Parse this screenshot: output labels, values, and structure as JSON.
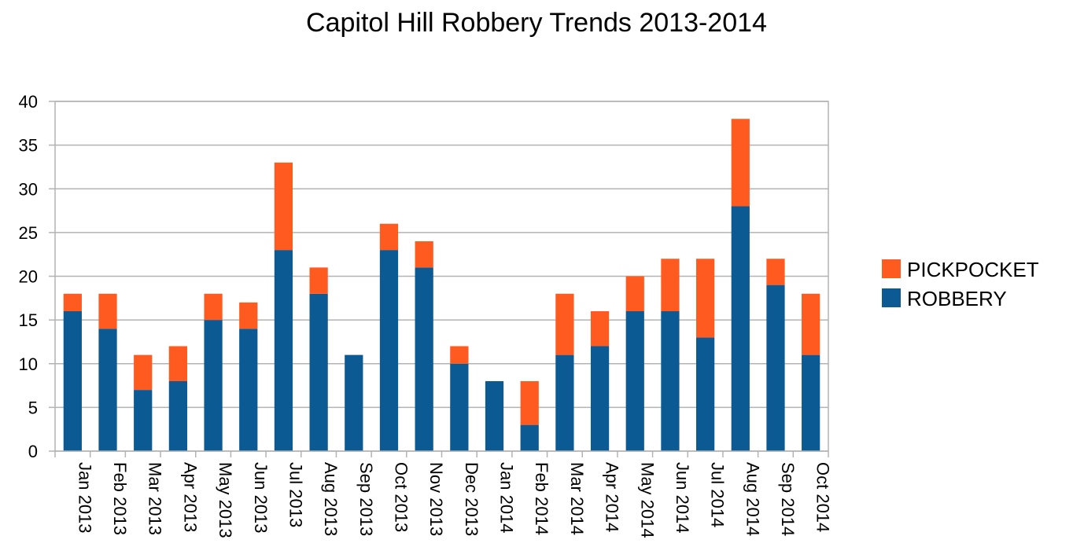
{
  "chart_data": {
    "type": "bar",
    "stacked": true,
    "title": "Capitol Hill Robbery Trends 2013-2014",
    "xlabel": "",
    "ylabel": "",
    "ylim": [
      0,
      40
    ],
    "yticks": [
      0,
      5,
      10,
      15,
      20,
      25,
      30,
      35,
      40
    ],
    "grid": true,
    "legend_position": "right",
    "categories": [
      "Jan 2013",
      "Feb 2013",
      "Mar 2013",
      "Apr 2013",
      "May 2013",
      "Jun 2013",
      "Jul 2013",
      "Aug 2013",
      "Sep 2013",
      "Oct 2013",
      "Nov 2013",
      "Dec 2013",
      "Jan 2014",
      "Feb 2014",
      "Mar 2014",
      "Apr 2014",
      "May 2014",
      "Jun 2014",
      "Jul 2014",
      "Aug 2014",
      "Sep 2014",
      "Oct 2014"
    ],
    "series": [
      {
        "name": "ROBBERY",
        "color": "#0b5a93",
        "values": [
          16,
          14,
          7,
          8,
          15,
          14,
          23,
          18,
          11,
          23,
          21,
          10,
          8,
          3,
          11,
          12,
          16,
          16,
          13,
          28,
          19,
          11
        ]
      },
      {
        "name": "PICKPOCKET",
        "color": "#ff5a1f",
        "values": [
          2,
          4,
          4,
          4,
          3,
          3,
          10,
          3,
          0,
          3,
          3,
          2,
          0,
          5,
          7,
          4,
          4,
          6,
          9,
          10,
          3,
          7
        ]
      }
    ],
    "legend_order": [
      "PICKPOCKET",
      "ROBBERY"
    ]
  }
}
